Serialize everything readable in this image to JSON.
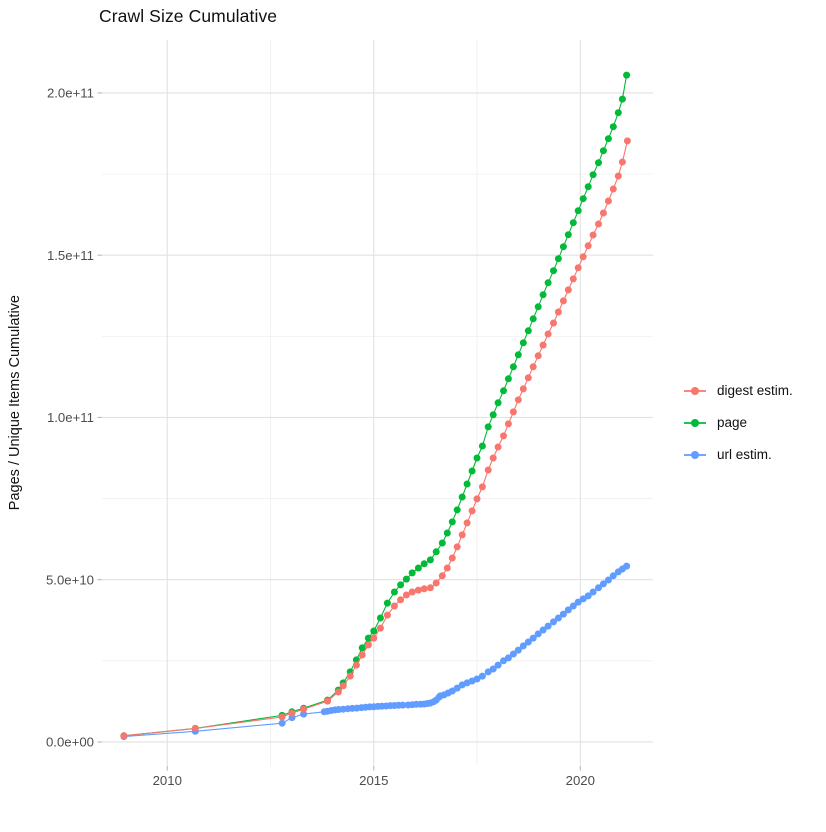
{
  "chart_data": {
    "type": "line",
    "title": "Crawl Size Cumulative",
    "xlabel": "",
    "ylabel": "Pages / Unique Items Cumulative",
    "x_domain": [
      2008.42,
      2021.76
    ],
    "y_domain_e9": [
      -7.4,
      216.3
    ],
    "y_unit": "1e9",
    "x_ticks": [
      2010,
      2015,
      2020
    ],
    "x_tick_labels": [
      "2010",
      "2015",
      "2020"
    ],
    "x_minor_ticks": [
      2012.5,
      2017.5
    ],
    "y_ticks_e9": [
      0,
      50,
      100,
      150,
      200
    ],
    "y_tick_labels": [
      "0.0e+00",
      "5.0e+10",
      "1.0e+11",
      "1.5e+11",
      "2.0e+11"
    ],
    "y_minor_ticks_e9": [
      25,
      75,
      125,
      175
    ],
    "grid": true,
    "legend_position": "right",
    "series": [
      {
        "name": "digest estim.",
        "color": "#F8766D",
        "points": [
          [
            2008.95,
            1.9
          ],
          [
            2010.68,
            4.2
          ],
          [
            2012.78,
            7.7
          ],
          [
            2013.02,
            8.9
          ],
          [
            2013.3,
            10.1
          ],
          [
            2013.88,
            12.6
          ],
          [
            2014.14,
            15.4
          ],
          [
            2014.26,
            17.3
          ],
          [
            2014.43,
            20.3
          ],
          [
            2014.58,
            23.7
          ],
          [
            2014.72,
            26.8
          ],
          [
            2014.87,
            29.9
          ],
          [
            2015.0,
            32.0
          ],
          [
            2015.16,
            35.1
          ],
          [
            2015.33,
            39.1
          ],
          [
            2015.5,
            41.9
          ],
          [
            2015.65,
            43.8
          ],
          [
            2015.79,
            45.3
          ],
          [
            2015.93,
            46.2
          ],
          [
            2016.08,
            46.8
          ],
          [
            2016.22,
            47.2
          ],
          [
            2016.37,
            47.5
          ],
          [
            2016.51,
            49.0
          ],
          [
            2016.66,
            51.2
          ],
          [
            2016.78,
            53.6
          ],
          [
            2016.9,
            56.7
          ],
          [
            2017.02,
            60.1
          ],
          [
            2017.14,
            63.8
          ],
          [
            2017.26,
            67.5
          ],
          [
            2017.38,
            71.2
          ],
          [
            2017.5,
            74.9
          ],
          [
            2017.63,
            78.6
          ],
          [
            2017.77,
            83.8
          ],
          [
            2017.89,
            87.5
          ],
          [
            2018.01,
            90.9
          ],
          [
            2018.14,
            94.3
          ],
          [
            2018.26,
            98.0
          ],
          [
            2018.38,
            101.7
          ],
          [
            2018.5,
            105.4
          ],
          [
            2018.62,
            108.8
          ],
          [
            2018.74,
            112.2
          ],
          [
            2018.86,
            115.6
          ],
          [
            2018.98,
            119.0
          ],
          [
            2019.1,
            122.3
          ],
          [
            2019.22,
            125.7
          ],
          [
            2019.35,
            129.1
          ],
          [
            2019.47,
            132.5
          ],
          [
            2019.59,
            135.9
          ],
          [
            2019.71,
            139.3
          ],
          [
            2019.83,
            142.7
          ],
          [
            2019.95,
            146.1
          ],
          [
            2020.07,
            149.5
          ],
          [
            2020.19,
            152.9
          ],
          [
            2020.31,
            156.2
          ],
          [
            2020.44,
            159.6
          ],
          [
            2020.56,
            163.0
          ],
          [
            2020.68,
            166.7
          ],
          [
            2020.8,
            170.4
          ],
          [
            2020.92,
            174.4
          ],
          [
            2021.02,
            178.7
          ],
          [
            2021.14,
            185.2
          ]
        ]
      },
      {
        "name": "page",
        "color": "#00BA38",
        "points": [
          [
            2008.95,
            1.9
          ],
          [
            2010.68,
            4.2
          ],
          [
            2012.78,
            8.2
          ],
          [
            2013.02,
            9.3
          ],
          [
            2013.3,
            10.4
          ],
          [
            2013.88,
            12.9
          ],
          [
            2014.14,
            16.0
          ],
          [
            2014.26,
            18.2
          ],
          [
            2014.43,
            21.6
          ],
          [
            2014.58,
            25.3
          ],
          [
            2014.72,
            29.0
          ],
          [
            2014.87,
            32.0
          ],
          [
            2015.0,
            34.2
          ],
          [
            2015.16,
            38.2
          ],
          [
            2015.33,
            42.8
          ],
          [
            2015.5,
            46.2
          ],
          [
            2015.65,
            48.4
          ],
          [
            2015.79,
            50.2
          ],
          [
            2015.93,
            52.1
          ],
          [
            2016.08,
            53.6
          ],
          [
            2016.22,
            54.9
          ],
          [
            2016.37,
            56.1
          ],
          [
            2016.51,
            58.6
          ],
          [
            2016.66,
            61.3
          ],
          [
            2016.78,
            64.4
          ],
          [
            2016.9,
            67.8
          ],
          [
            2017.02,
            71.5
          ],
          [
            2017.14,
            75.5
          ],
          [
            2017.26,
            79.5
          ],
          [
            2017.38,
            83.5
          ],
          [
            2017.5,
            87.5
          ],
          [
            2017.63,
            91.2
          ],
          [
            2017.77,
            97.1
          ],
          [
            2017.89,
            100.8
          ],
          [
            2018.01,
            104.5
          ],
          [
            2018.14,
            108.2
          ],
          [
            2018.26,
            111.9
          ],
          [
            2018.38,
            115.6
          ],
          [
            2018.5,
            119.3
          ],
          [
            2018.62,
            123.0
          ],
          [
            2018.74,
            126.7
          ],
          [
            2018.86,
            130.4
          ],
          [
            2018.98,
            134.1
          ],
          [
            2019.1,
            137.8
          ],
          [
            2019.22,
            141.5
          ],
          [
            2019.35,
            145.2
          ],
          [
            2019.47,
            148.9
          ],
          [
            2019.59,
            152.6
          ],
          [
            2019.71,
            156.3
          ],
          [
            2019.83,
            160.0
          ],
          [
            2019.95,
            163.7
          ],
          [
            2020.07,
            167.4
          ],
          [
            2020.19,
            171.1
          ],
          [
            2020.31,
            174.8
          ],
          [
            2020.44,
            178.5
          ],
          [
            2020.56,
            182.2
          ],
          [
            2020.68,
            185.9
          ],
          [
            2020.8,
            189.6
          ],
          [
            2020.92,
            193.9
          ],
          [
            2021.02,
            198.1
          ],
          [
            2021.12,
            205.5
          ]
        ]
      },
      {
        "name": "url estim.",
        "color": "#619CFF",
        "points": [
          [
            2008.95,
            1.7
          ],
          [
            2010.68,
            3.3
          ],
          [
            2012.78,
            5.8
          ],
          [
            2013.02,
            7.5
          ],
          [
            2013.3,
            8.6
          ],
          [
            2013.8,
            9.3
          ],
          [
            2013.88,
            9.5
          ],
          [
            2013.97,
            9.7
          ],
          [
            2014.06,
            9.9
          ],
          [
            2014.15,
            10.0
          ],
          [
            2014.26,
            10.1
          ],
          [
            2014.37,
            10.25
          ],
          [
            2014.48,
            10.35
          ],
          [
            2014.59,
            10.45
          ],
          [
            2014.7,
            10.6
          ],
          [
            2014.8,
            10.7
          ],
          [
            2014.9,
            10.8
          ],
          [
            2015.0,
            10.85
          ],
          [
            2015.1,
            10.95
          ],
          [
            2015.2,
            11.05
          ],
          [
            2015.3,
            11.1
          ],
          [
            2015.4,
            11.2
          ],
          [
            2015.5,
            11.25
          ],
          [
            2015.6,
            11.3
          ],
          [
            2015.7,
            11.35
          ],
          [
            2015.83,
            11.4
          ],
          [
            2015.93,
            11.5
          ],
          [
            2016.03,
            11.6
          ],
          [
            2016.13,
            11.65
          ],
          [
            2016.22,
            11.7
          ],
          [
            2016.3,
            11.85
          ],
          [
            2016.37,
            12.0
          ],
          [
            2016.45,
            12.4
          ],
          [
            2016.51,
            12.9
          ],
          [
            2016.58,
            13.8
          ],
          [
            2016.61,
            14.2
          ],
          [
            2016.7,
            14.5
          ],
          [
            2016.8,
            15.1
          ],
          [
            2016.9,
            15.7
          ],
          [
            2017.02,
            16.6
          ],
          [
            2017.14,
            17.6
          ],
          [
            2017.26,
            18.2
          ],
          [
            2017.38,
            18.8
          ],
          [
            2017.5,
            19.4
          ],
          [
            2017.63,
            20.3
          ],
          [
            2017.77,
            21.6
          ],
          [
            2017.89,
            22.5
          ],
          [
            2018.01,
            23.7
          ],
          [
            2018.14,
            25.0
          ],
          [
            2018.26,
            25.9
          ],
          [
            2018.38,
            27.1
          ],
          [
            2018.5,
            28.3
          ],
          [
            2018.62,
            29.6
          ],
          [
            2018.74,
            30.8
          ],
          [
            2018.86,
            32.0
          ],
          [
            2018.98,
            33.3
          ],
          [
            2019.1,
            34.5
          ],
          [
            2019.22,
            35.7
          ],
          [
            2019.35,
            37.0
          ],
          [
            2019.47,
            38.2
          ],
          [
            2019.59,
            39.4
          ],
          [
            2019.71,
            40.7
          ],
          [
            2019.83,
            41.9
          ],
          [
            2019.95,
            43.1
          ],
          [
            2020.07,
            44.1
          ],
          [
            2020.19,
            45.0
          ],
          [
            2020.31,
            46.2
          ],
          [
            2020.44,
            47.5
          ],
          [
            2020.56,
            48.7
          ],
          [
            2020.68,
            49.9
          ],
          [
            2020.8,
            51.2
          ],
          [
            2020.92,
            52.4
          ],
          [
            2021.02,
            53.3
          ],
          [
            2021.12,
            54.2
          ]
        ]
      }
    ]
  },
  "legend": {
    "items": [
      {
        "label": "digest estim.",
        "color": "#F8766D"
      },
      {
        "label": "page",
        "color": "#00BA38"
      },
      {
        "label": "url estim.",
        "color": "#619CFF"
      }
    ]
  },
  "colors": {
    "axis_text": "#4d4d4d",
    "grid_major": "#e2e2e2",
    "grid_minor": "#f0f0f0",
    "tick_mark": "#b8b8b8"
  }
}
